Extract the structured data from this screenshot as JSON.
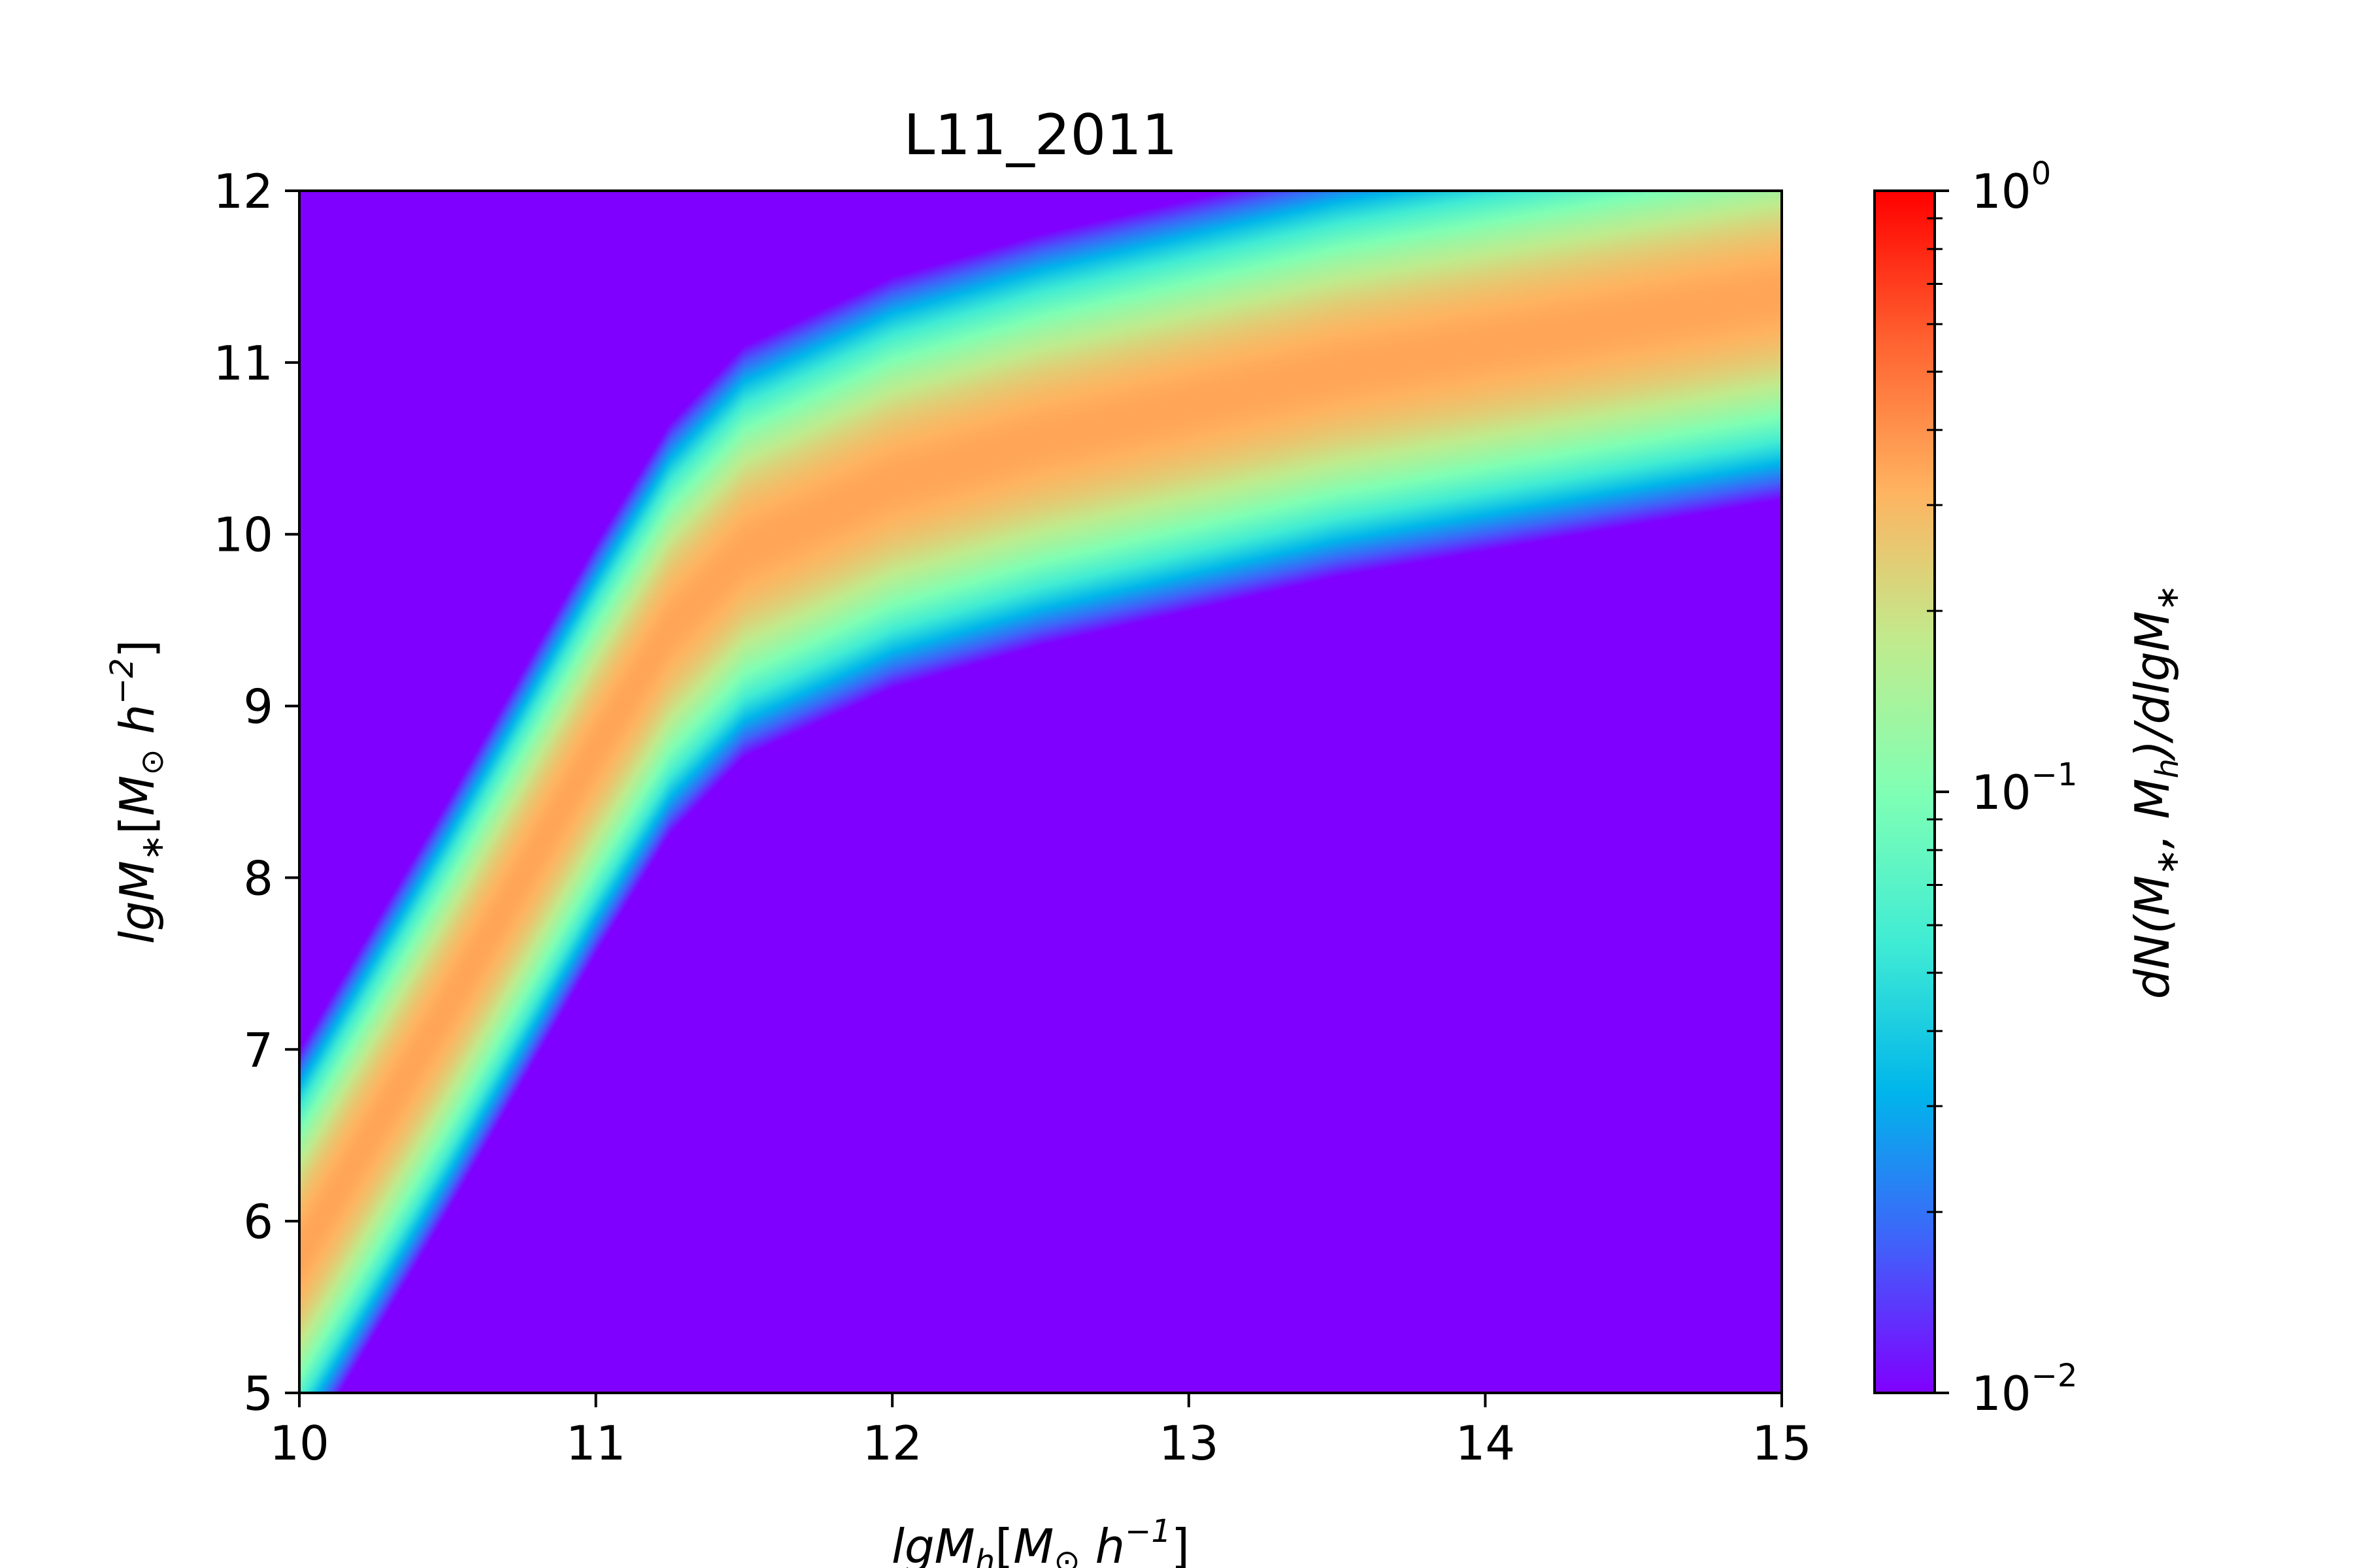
{
  "chart_data": {
    "type": "heatmap",
    "title": "L11_2011",
    "xlabel": "lgM_h[M_⊙ h^{-1}]",
    "ylabel": "lgM_*[M_⊙ h^{-2}]",
    "colorbar_label": "dN(M_*, M_h)/dlgM_*",
    "xlim": [
      10,
      15
    ],
    "ylim": [
      5,
      12
    ],
    "x_ticks": [
      "10",
      "11",
      "12",
      "13",
      "14",
      "15"
    ],
    "y_ticks": [
      "5",
      "6",
      "7",
      "8",
      "9",
      "10",
      "11",
      "12"
    ],
    "colormap": "rainbow",
    "color_scale": "log",
    "clim": [
      0.01,
      1
    ],
    "colorbar_ticks": [
      {
        "base": "10",
        "exp": "0"
      },
      {
        "base": "10",
        "exp": "−1"
      },
      {
        "base": "10",
        "exp": "−2"
      }
    ],
    "ridge": {
      "lgMh": [
        10.0,
        10.5,
        11.0,
        11.25,
        11.5,
        12.0,
        12.5,
        13.0,
        13.5,
        14.0,
        14.5,
        15.0
      ],
      "lgMstar": [
        5.8,
        7.25,
        8.75,
        9.45,
        9.9,
        10.3,
        10.55,
        10.75,
        10.95,
        11.1,
        11.25,
        11.4
      ]
    },
    "scatter_dex": 0.45,
    "peak_value": 0.35
  }
}
